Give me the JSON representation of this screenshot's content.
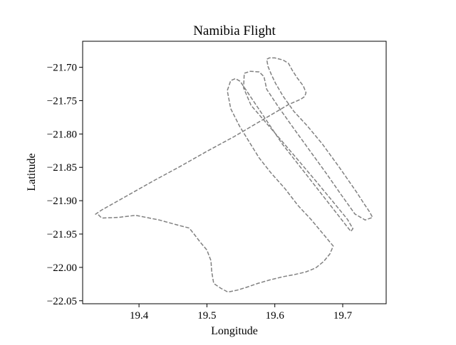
{
  "chart_data": {
    "type": "line",
    "title": "Namibia Flight",
    "xlabel": "Longitude",
    "ylabel": "Latitude",
    "xlim": [
      19.317,
      19.764
    ],
    "ylim": [
      -22.0545,
      -21.661
    ],
    "x_ticks": [
      19.4,
      19.5,
      19.6,
      19.7
    ],
    "x_tick_labels": [
      "19.4",
      "19.5",
      "19.6",
      "19.7"
    ],
    "y_ticks": [
      -21.7,
      -21.75,
      -21.8,
      -21.85,
      -21.9,
      -21.95,
      -22.0,
      -22.05
    ],
    "y_tick_labels": [
      "−21.70",
      "−21.75",
      "−21.80",
      "−21.85",
      "−21.90",
      "−21.95",
      "−22.00",
      "−22.05"
    ],
    "grid": false,
    "series": [
      {
        "line_style": "dashed",
        "color": "#808080",
        "x": [
          19.34,
          19.345,
          19.37,
          19.395,
          19.43,
          19.455,
          19.474,
          19.481,
          19.49,
          19.5,
          19.506,
          19.507,
          19.51,
          19.52,
          19.531,
          19.545,
          19.558,
          19.575,
          19.592,
          19.612,
          19.628,
          19.645,
          19.66,
          19.672,
          19.681,
          19.686,
          19.654,
          19.634,
          19.615,
          19.594,
          19.577,
          19.563,
          19.548,
          19.535,
          19.53,
          19.535,
          19.542,
          19.549,
          19.611,
          19.712,
          19.715,
          19.707,
          19.686,
          19.66,
          19.63,
          19.598,
          19.565,
          19.554,
          19.555,
          19.564,
          19.577,
          19.584,
          19.588,
          19.605,
          19.628,
          19.653,
          19.675,
          19.697,
          19.718,
          19.733,
          19.744,
          19.739,
          19.731,
          19.721,
          19.695,
          19.67,
          19.648,
          19.628,
          19.612,
          19.601,
          19.595,
          19.59,
          19.588,
          19.592,
          19.6,
          19.612,
          19.62,
          19.626,
          19.633,
          19.642,
          19.646,
          19.644,
          19.638,
          19.62,
          19.595,
          19.57,
          19.54,
          19.5,
          19.46,
          19.42,
          19.38,
          19.345,
          19.335
        ],
        "y": [
          -21.921,
          -21.926,
          -21.925,
          -21.922,
          -21.929,
          -21.936,
          -21.941,
          -21.95,
          -21.962,
          -21.974,
          -21.99,
          -22.006,
          -22.024,
          -22.031,
          -22.037,
          -22.034,
          -22.03,
          -22.024,
          -22.019,
          -22.014,
          -22.011,
          -22.007,
          -22.001,
          -21.991,
          -21.98,
          -21.968,
          -21.929,
          -21.907,
          -21.882,
          -21.858,
          -21.836,
          -21.813,
          -21.788,
          -21.762,
          -21.735,
          -21.72,
          -21.717,
          -21.721,
          -21.815,
          -21.946,
          -21.942,
          -21.928,
          -21.902,
          -21.87,
          -21.834,
          -21.796,
          -21.757,
          -21.731,
          -21.709,
          -21.706,
          -21.707,
          -21.714,
          -21.733,
          -21.759,
          -21.792,
          -21.827,
          -21.858,
          -21.89,
          -21.92,
          -21.929,
          -21.925,
          -21.916,
          -21.904,
          -21.888,
          -21.85,
          -21.815,
          -21.788,
          -21.766,
          -21.743,
          -21.724,
          -21.711,
          -21.699,
          -21.688,
          -21.686,
          -21.686,
          -21.689,
          -21.694,
          -21.705,
          -21.716,
          -21.728,
          -21.738,
          -21.744,
          -21.748,
          -21.756,
          -21.771,
          -21.786,
          -21.804,
          -21.826,
          -21.849,
          -21.871,
          -21.894,
          -21.914,
          -21.921
        ]
      }
    ]
  }
}
